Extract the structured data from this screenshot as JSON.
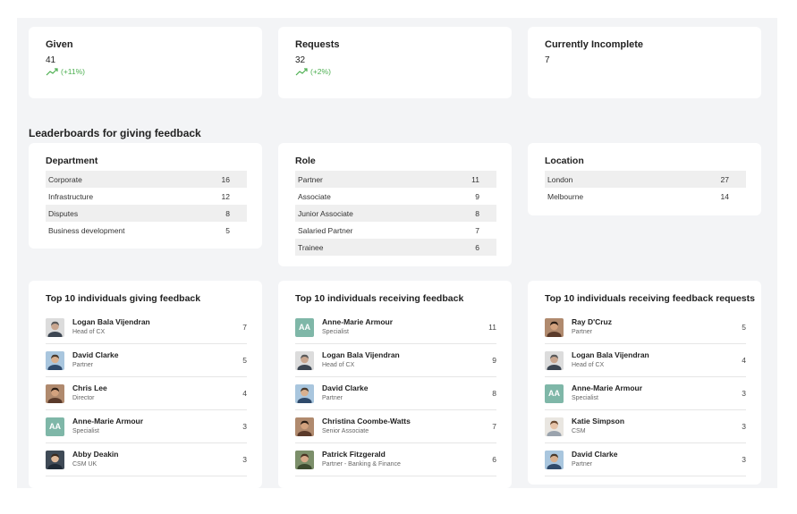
{
  "stats": [
    {
      "title": "Given",
      "value": "41",
      "trend": "(+11%)"
    },
    {
      "title": "Requests",
      "value": "32",
      "trend": "(+2%)"
    },
    {
      "title": "Currently Incomplete",
      "value": "7",
      "trend": ""
    }
  ],
  "section_title": "Leaderboards for giving feedback",
  "leaderboards": {
    "department": {
      "title": "Department",
      "rows": [
        {
          "label": "Corporate",
          "count": "16"
        },
        {
          "label": "Infrastructure",
          "count": "12"
        },
        {
          "label": "Disputes",
          "count": "8"
        },
        {
          "label": "Business development",
          "count": "5"
        }
      ]
    },
    "role": {
      "title": "Role",
      "rows": [
        {
          "label": "Partner",
          "count": "11"
        },
        {
          "label": "Associate",
          "count": "9"
        },
        {
          "label": "Junior Associate",
          "count": "8"
        },
        {
          "label": "Salaried Partner",
          "count": "7"
        },
        {
          "label": "Trainee",
          "count": "6"
        }
      ]
    },
    "location": {
      "title": "Location",
      "rows": [
        {
          "label": "London",
          "count": "27"
        },
        {
          "label": "Melbourne",
          "count": "14"
        }
      ]
    }
  },
  "top_giving": {
    "title": "Top 10 individuals giving feedback",
    "rows": [
      {
        "name": "Logan Bala Vijendran",
        "role": "Head of CX",
        "count": "7",
        "avatar": "photo-grey"
      },
      {
        "name": "David Clarke",
        "role": "Partner",
        "count": "5",
        "avatar": "photo-blue"
      },
      {
        "name": "Chris Lee",
        "role": "Director",
        "count": "4",
        "avatar": "photo-brown"
      },
      {
        "name": "Anne-Marie Armour",
        "role": "Specialist",
        "count": "3",
        "avatar": "AA"
      },
      {
        "name": "Abby Deakin",
        "role": "CSM UK",
        "count": "3",
        "avatar": "photo-dark"
      }
    ]
  },
  "top_receiving": {
    "title": "Top 10 individuals receiving feedback",
    "rows": [
      {
        "name": "Anne-Marie Armour",
        "role": "Specialist",
        "count": "11",
        "avatar": "AA"
      },
      {
        "name": "Logan Bala Vijendran",
        "role": "Head of CX",
        "count": "9",
        "avatar": "photo-grey"
      },
      {
        "name": "David Clarke",
        "role": "Partner",
        "count": "8",
        "avatar": "photo-blue"
      },
      {
        "name": "Christina Coombe-Watts",
        "role": "Senior Associate",
        "count": "7",
        "avatar": "photo-brown"
      },
      {
        "name": "Patrick Fitzgerald",
        "role": "Partner - Banking & Finance",
        "count": "6",
        "avatar": "photo-green"
      }
    ]
  },
  "top_requests": {
    "title": "Top 10 individuals receiving feedback requests",
    "rows": [
      {
        "name": "Ray D'Cruz",
        "role": "Partner",
        "count": "5",
        "avatar": "photo-brown"
      },
      {
        "name": "Logan Bala Vijendran",
        "role": "Head of CX",
        "count": "4",
        "avatar": "photo-grey"
      },
      {
        "name": "Anne-Marie Armour",
        "role": "Specialist",
        "count": "3",
        "avatar": "AA"
      },
      {
        "name": "Katie Simpson",
        "role": "CSM",
        "count": "3",
        "avatar": "photo-light"
      },
      {
        "name": "David Clarke",
        "role": "Partner",
        "count": "3",
        "avatar": "photo-blue"
      }
    ]
  },
  "colors": {
    "canvas": "#f3f4f6",
    "card": "#ffffff",
    "trend_up": "#4caf50",
    "initials_avatar": "#7fb7a8",
    "row_alt": "#efefef"
  }
}
